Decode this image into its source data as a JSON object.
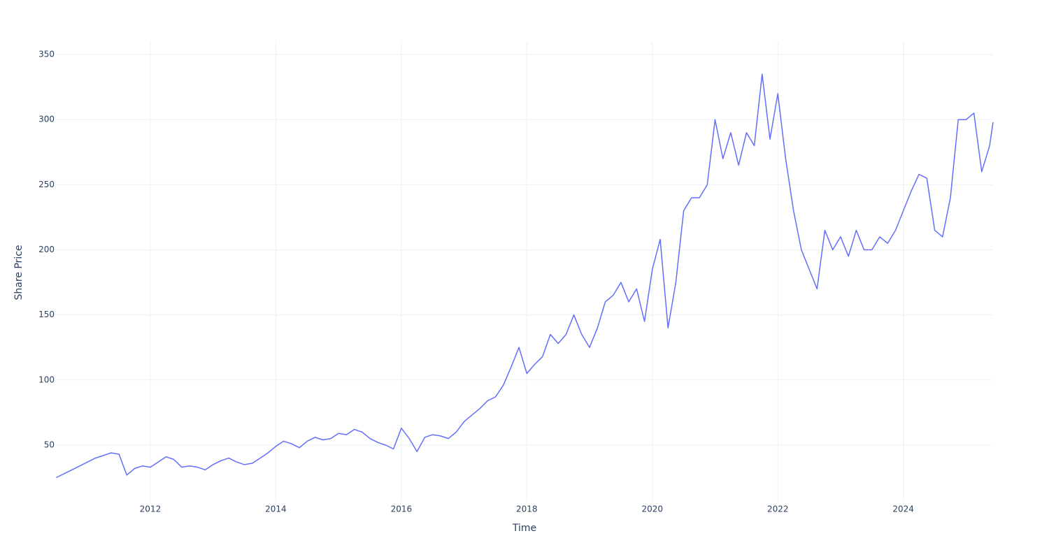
{
  "chart_data": {
    "type": "line",
    "x_label": "Time",
    "y_label": "Share Price",
    "x": [
      2010.5,
      2010.625,
      2010.75,
      2010.875,
      2011,
      2011.125,
      2011.25,
      2011.375,
      2011.5,
      2011.625,
      2011.75,
      2011.875,
      2012,
      2012.125,
      2012.25,
      2012.375,
      2012.5,
      2012.625,
      2012.75,
      2012.875,
      2013,
      2013.125,
      2013.25,
      2013.375,
      2013.5,
      2013.625,
      2013.75,
      2013.875,
      2014,
      2014.125,
      2014.25,
      2014.375,
      2014.5,
      2014.625,
      2014.75,
      2014.875,
      2015,
      2015.125,
      2015.25,
      2015.375,
      2015.5,
      2015.625,
      2015.75,
      2015.875,
      2016,
      2016.125,
      2016.25,
      2016.375,
      2016.5,
      2016.625,
      2016.75,
      2016.875,
      2017,
      2017.125,
      2017.25,
      2017.375,
      2017.5,
      2017.625,
      2017.75,
      2017.875,
      2018,
      2018.125,
      2018.25,
      2018.375,
      2018.5,
      2018.625,
      2018.75,
      2018.875,
      2019,
      2019.125,
      2019.25,
      2019.375,
      2019.5,
      2019.625,
      2019.75,
      2019.875,
      2020,
      2020.125,
      2020.25,
      2020.375,
      2020.5,
      2020.625,
      2020.75,
      2020.875,
      2021,
      2021.125,
      2021.25,
      2021.375,
      2021.5,
      2021.625,
      2021.75,
      2021.875,
      2022,
      2022.125,
      2022.25,
      2022.375,
      2022.5,
      2022.625,
      2022.75,
      2022.875,
      2023,
      2023.125,
      2023.25,
      2023.375,
      2023.5,
      2023.625,
      2023.75,
      2023.875,
      2024,
      2024.125,
      2024.25,
      2024.375,
      2024.5,
      2024.625,
      2024.75,
      2024.875,
      2025,
      2025.125,
      2025.25,
      2025.375,
      2025.43
    ],
    "series": [
      {
        "name": "Share Price",
        "color": "#636efa",
        "values": [
          25,
          28,
          31,
          34,
          37,
          40,
          42,
          44,
          43,
          27,
          32,
          34,
          33,
          37,
          41,
          39,
          33,
          34,
          33,
          31,
          35,
          38,
          40,
          37,
          35,
          36,
          40,
          44,
          49,
          53,
          51,
          48,
          53,
          56,
          54,
          55,
          59,
          58,
          62,
          60,
          55,
          52,
          50,
          47,
          63,
          55,
          45,
          56,
          58,
          57,
          55,
          60,
          68,
          73,
          78,
          84,
          87,
          96,
          110,
          125,
          105,
          112,
          118,
          135,
          128,
          135,
          150,
          135,
          125,
          140,
          160,
          165,
          175,
          160,
          170,
          145,
          185,
          208,
          140,
          175,
          230,
          240,
          240,
          250,
          300,
          270,
          290,
          265,
          290,
          280,
          335,
          285,
          320,
          270,
          230,
          200,
          185,
          170,
          215,
          200,
          210,
          195,
          215,
          200,
          200,
          210,
          205,
          215,
          230,
          245,
          258,
          255,
          215,
          210,
          240,
          300,
          300,
          305,
          260,
          280,
          298
        ]
      }
    ],
    "xlim": [
      2010.496,
      2025.43
    ],
    "xticks": [
      2012,
      2014,
      2016,
      2018,
      2020,
      2022,
      2024
    ],
    "ylim": [
      6.5,
      359.7
    ],
    "yticks": [
      50,
      100,
      150,
      200,
      250,
      300,
      350
    ],
    "grid": true
  }
}
